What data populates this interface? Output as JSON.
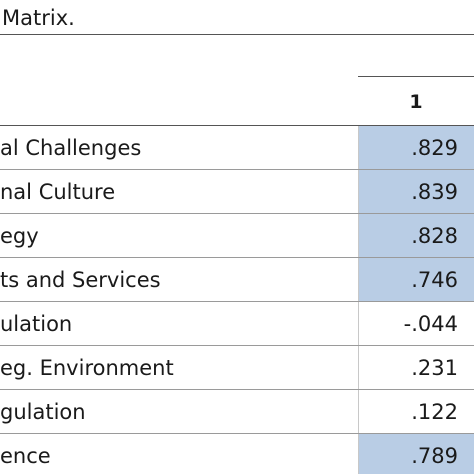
{
  "caption": "Matrix.",
  "column_header": "1",
  "highlight_color": "#b9cde5",
  "rows": [
    {
      "label": "al Challenges",
      "value": ".829",
      "highlighted": true
    },
    {
      "label": "nal Culture",
      "value": ".839",
      "highlighted": true
    },
    {
      "label": "egy",
      "value": ".828",
      "highlighted": true
    },
    {
      "label": "ts and Services",
      "value": ".746",
      "highlighted": true
    },
    {
      "label": "ulation",
      "value": "-.044",
      "highlighted": false
    },
    {
      "label": "eg. Environment",
      "value": ".231",
      "highlighted": false
    },
    {
      "label": "gulation",
      "value": ".122",
      "highlighted": false
    },
    {
      "label": "ence",
      "value": ".789",
      "highlighted": true
    }
  ]
}
